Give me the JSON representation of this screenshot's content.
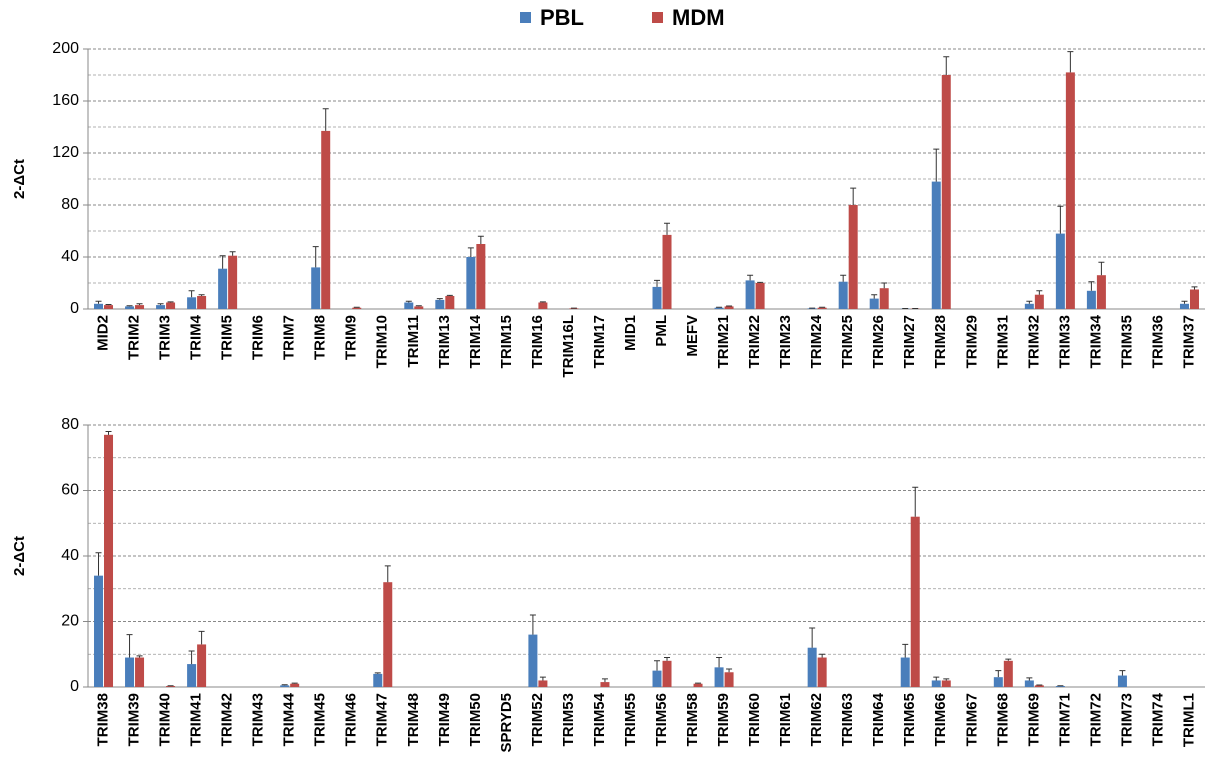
{
  "chart_data": [
    {
      "type": "bar",
      "ylabel": "2-ΔCt",
      "categories": [
        "MID2",
        "TRIM2",
        "TRIM3",
        "TRIM4",
        "TRIM5",
        "TRIM6",
        "TRIM7",
        "TRIM8",
        "TRIM9",
        "TRIM10",
        "TRIM11",
        "TRIM13",
        "TRIM14",
        "TRIM15",
        "TRIM16",
        "TRIM16L",
        "TRIM17",
        "MID1",
        "PML",
        "MEFV",
        "TRIM21",
        "TRIM22",
        "TRIM23",
        "TRIM24",
        "TRIM25",
        "TRIM26",
        "TRIM27",
        "TRIM28",
        "TRIM29",
        "TRIM31",
        "TRIM32",
        "TRIM33",
        "TRIM34",
        "TRIM35",
        "TRIM36",
        "TRIM37"
      ],
      "series": [
        {
          "name": "PBL",
          "color": "#4a7ebb",
          "values": [
            4,
            2,
            3,
            9,
            31,
            0,
            0,
            32,
            0,
            0,
            5,
            7,
            40,
            0,
            0,
            0,
            0,
            0,
            17,
            0,
            1,
            22,
            0,
            0.5,
            21,
            8,
            0.3,
            98,
            0,
            0,
            4,
            58,
            14,
            0,
            0,
            4
          ],
          "errors": [
            2,
            0.5,
            1,
            5,
            10,
            0,
            0,
            16,
            0,
            0,
            1,
            1,
            7,
            0,
            0,
            0,
            0,
            0,
            5,
            0,
            0.3,
            4,
            0,
            0.2,
            5,
            3,
            0.1,
            25,
            0,
            0,
            2,
            21,
            7,
            0,
            0,
            2
          ]
        },
        {
          "name": "MDM",
          "color": "#be4b48",
          "values": [
            3,
            3,
            5,
            10,
            41,
            0,
            0,
            137,
            1,
            0,
            2,
            10,
            50,
            0,
            5,
            0.5,
            0,
            0,
            57,
            0,
            2,
            20,
            0,
            1,
            80,
            16,
            0.3,
            180,
            0,
            0,
            11,
            182,
            26,
            0,
            0,
            15
          ],
          "errors": [
            0.5,
            1,
            0.5,
            1,
            3,
            0,
            0,
            17,
            0.3,
            0,
            0.5,
            0.5,
            6,
            0,
            0.5,
            0.2,
            0,
            0,
            9,
            0,
            0.3,
            0.5,
            0,
            0.3,
            13,
            4,
            0.1,
            14,
            0,
            0,
            3,
            16,
            10,
            0,
            0,
            2
          ]
        }
      ],
      "ylim": [
        0,
        200
      ],
      "yticks": [
        0,
        40,
        80,
        120,
        160,
        200
      ],
      "minor_yticks": [
        20,
        60,
        100,
        140,
        180
      ],
      "grid": true,
      "legend": "top"
    },
    {
      "type": "bar",
      "ylabel": "2-ΔCt",
      "categories": [
        "TRIM38",
        "TRIM39",
        "TRIM40",
        "TRIM41",
        "TRIM42",
        "TRIM43",
        "TRIM44",
        "TRIM45",
        "TRIM46",
        "TRIM47",
        "TRIM48",
        "TRIM49",
        "TRIM50",
        "SPRYD5",
        "TRIM52",
        "TRIM53",
        "TRIM54",
        "TRIM55",
        "TRIM56",
        "TRIM58",
        "TRIM59",
        "TRIM60",
        "TRIM61",
        "TRIM62",
        "TRIM63",
        "TRIM64",
        "TRIM65",
        "TRIM66",
        "TRIM67",
        "TRIM68",
        "TRIM69",
        "TRIM71",
        "TRIM72",
        "TRIM73",
        "TRIM74",
        "TRIML1"
      ],
      "series": [
        {
          "color": "#4a7ebb",
          "values": [
            34,
            9,
            0,
            7,
            0,
            0,
            0.5,
            0,
            0,
            4,
            0,
            0,
            0,
            0,
            16,
            0,
            0,
            0,
            5,
            0,
            6,
            0,
            0,
            12,
            0,
            0,
            9,
            2,
            0,
            3,
            2,
            0.3,
            0,
            3.5,
            0,
            0
          ],
          "errors": [
            7,
            7,
            0,
            4,
            0,
            0,
            0.2,
            0,
            0,
            0.3,
            0,
            0,
            0,
            0,
            6,
            0,
            0,
            0,
            3,
            0,
            3,
            0,
            0,
            6,
            0,
            0,
            4,
            1,
            0,
            2,
            0.8,
            0.1,
            0,
            1.5,
            0,
            0
          ]
        },
        {
          "color": "#be4b48",
          "values": [
            77,
            9,
            0.3,
            13,
            0,
            0,
            1,
            0,
            0,
            32,
            0,
            0,
            0,
            0,
            2,
            0,
            1.5,
            0,
            8,
            1,
            4.5,
            0,
            0,
            9,
            0,
            0,
            52,
            2,
            0,
            8,
            0.5,
            0,
            0,
            0,
            0,
            0
          ],
          "errors": [
            1,
            0.5,
            0.1,
            4,
            0,
            0,
            0.2,
            0,
            0,
            5,
            0,
            0,
            0,
            0,
            1,
            0,
            1,
            0,
            1,
            0.2,
            1,
            0,
            0,
            1,
            0,
            0,
            9,
            0.5,
            0,
            0.5,
            0.1,
            0,
            0,
            0,
            0,
            0
          ]
        }
      ],
      "ylim": [
        0,
        80
      ],
      "yticks": [
        0,
        20,
        40,
        60,
        80
      ],
      "minor_yticks": [
        10,
        30,
        50,
        70
      ],
      "grid": true
    }
  ]
}
